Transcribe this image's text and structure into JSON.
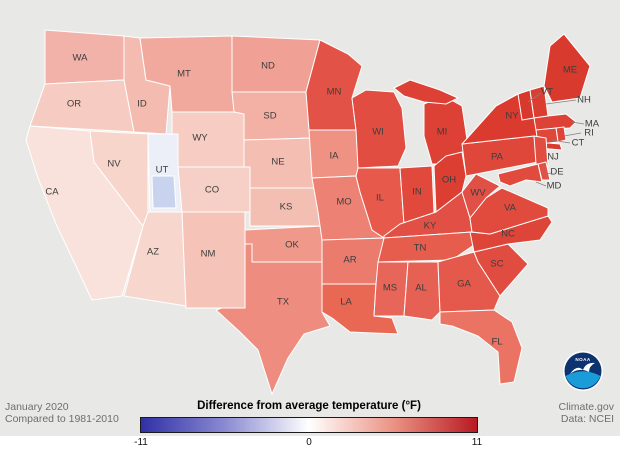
{
  "figure": {
    "background": "#e8e8e6"
  },
  "footer": {
    "period": "January 2020",
    "baseline": "Compared to 1981-2010",
    "site": "Climate.gov",
    "source": "Data: NCEI"
  },
  "legend": {
    "title": "Difference from average temperature (°F)",
    "min_label": "-11",
    "mid_label": "0",
    "max_label": "11",
    "colors": {
      "min": "#3030a6",
      "mid": "#ffffff",
      "max": "#b81a24"
    }
  },
  "logo": {
    "label": "NOAA"
  },
  "map": {
    "border_color": "#ffffff",
    "label_color": "#3d3d3d",
    "utah_patch_color": "#c8d4ee",
    "states": [
      {
        "abbr": "WA",
        "fill": "#f3b2a9"
      },
      {
        "abbr": "OR",
        "fill": "#f6ccc2"
      },
      {
        "abbr": "CA",
        "fill": "#f9e2db"
      },
      {
        "abbr": "NV",
        "fill": "#f7d5cb"
      },
      {
        "abbr": "ID",
        "fill": "#f4bbb1"
      },
      {
        "abbr": "MT",
        "fill": "#f1a89d"
      },
      {
        "abbr": "WY",
        "fill": "#f6ccc3"
      },
      {
        "abbr": "UT",
        "fill": "#edeff8"
      },
      {
        "abbr": "CO",
        "fill": "#f6cfc6"
      },
      {
        "abbr": "AZ",
        "fill": "#f7d7cd"
      },
      {
        "abbr": "NM",
        "fill": "#f5c3b8"
      },
      {
        "abbr": "ND",
        "fill": "#f0a094"
      },
      {
        "abbr": "SD",
        "fill": "#f3b1a6"
      },
      {
        "abbr": "NE",
        "fill": "#f4beb3"
      },
      {
        "abbr": "KS",
        "fill": "#f4bfb3"
      },
      {
        "abbr": "OK",
        "fill": "#f0998b"
      },
      {
        "abbr": "TX",
        "fill": "#ee8d7f"
      },
      {
        "abbr": "MN",
        "fill": "#e35246"
      },
      {
        "abbr": "IA",
        "fill": "#ef9183"
      },
      {
        "abbr": "MO",
        "fill": "#ed8274"
      },
      {
        "abbr": "AR",
        "fill": "#eb7b6d"
      },
      {
        "abbr": "LA",
        "fill": "#e96853"
      },
      {
        "abbr": "WI",
        "fill": "#e14e41"
      },
      {
        "abbr": "IL",
        "fill": "#e6594b"
      },
      {
        "abbr": "MI",
        "fill": "#dd4035"
      },
      {
        "abbr": "IN",
        "fill": "#e0493c"
      },
      {
        "abbr": "OH",
        "fill": "#dc3e32"
      },
      {
        "abbr": "KY",
        "fill": "#e25045"
      },
      {
        "abbr": "TN",
        "fill": "#e65d4e"
      },
      {
        "abbr": "MS",
        "fill": "#e86659"
      },
      {
        "abbr": "AL",
        "fill": "#e66053"
      },
      {
        "abbr": "GA",
        "fill": "#e4594b"
      },
      {
        "abbr": "FL",
        "fill": "#ea7363"
      },
      {
        "abbr": "SC",
        "fill": "#e04c3f"
      },
      {
        "abbr": "NC",
        "fill": "#de4539"
      },
      {
        "abbr": "VA",
        "fill": "#e04b3e"
      },
      {
        "abbr": "WV",
        "fill": "#e15046"
      },
      {
        "abbr": "PA",
        "fill": "#df473b"
      },
      {
        "abbr": "NY",
        "fill": "#db3b2f"
      },
      {
        "abbr": "VT",
        "fill": "#d9392d"
      },
      {
        "abbr": "NH",
        "fill": "#db3d31"
      },
      {
        "abbr": "ME",
        "fill": "#d83a2e"
      },
      {
        "abbr": "MA",
        "fill": "#dd4236"
      },
      {
        "abbr": "RI",
        "fill": "#de4539"
      },
      {
        "abbr": "CT",
        "fill": "#df473b"
      },
      {
        "abbr": "NJ",
        "fill": "#e14d40"
      },
      {
        "abbr": "DE",
        "fill": "#e25146"
      },
      {
        "abbr": "MD",
        "fill": "#e04b3e"
      }
    ]
  }
}
